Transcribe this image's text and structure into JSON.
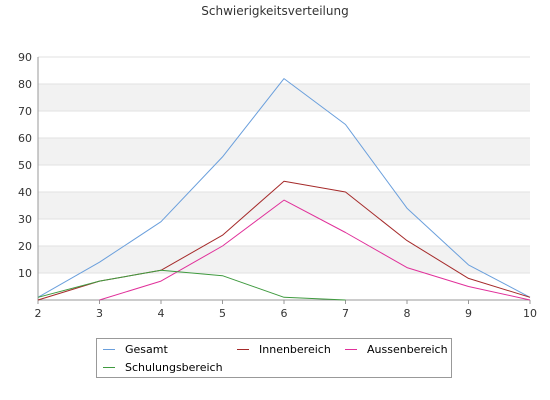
{
  "chart_data": {
    "type": "line",
    "title": "Schwierigkeitsverteilung",
    "xlabel": "",
    "ylabel": "",
    "xlim": [
      2,
      10
    ],
    "ylim": [
      0,
      90
    ],
    "x_ticks": [
      2,
      3,
      4,
      5,
      6,
      7,
      8,
      9,
      10
    ],
    "y_ticks": [
      10,
      20,
      30,
      40,
      50,
      60,
      70,
      80,
      90
    ],
    "grid": "horizontal alternating bands",
    "legend_position": "bottom",
    "series": [
      {
        "name": "Gesamt",
        "color": "#6a9fdc",
        "x": [
          2,
          3,
          4,
          5,
          6,
          7,
          8,
          9,
          10
        ],
        "values": [
          1,
          14,
          29,
          53,
          82,
          65,
          34,
          13,
          1
        ]
      },
      {
        "name": "Innenbereich",
        "color": "#a52a2a",
        "x": [
          2,
          3,
          4,
          5,
          6,
          7,
          8,
          9,
          10
        ],
        "values": [
          0,
          7,
          11,
          24,
          44,
          40,
          22,
          8,
          1
        ]
      },
      {
        "name": "Aussenbereich",
        "color": "#e0309a",
        "x": [
          3,
          4,
          5,
          6,
          7,
          8,
          9,
          10
        ],
        "values": [
          0,
          7,
          20,
          37,
          25,
          12,
          5,
          0
        ]
      },
      {
        "name": "Schulungsbereich",
        "color": "#3f9a3f",
        "x": [
          2,
          3,
          4,
          5,
          6,
          7
        ],
        "values": [
          1,
          7,
          11,
          9,
          1,
          0
        ]
      }
    ]
  }
}
